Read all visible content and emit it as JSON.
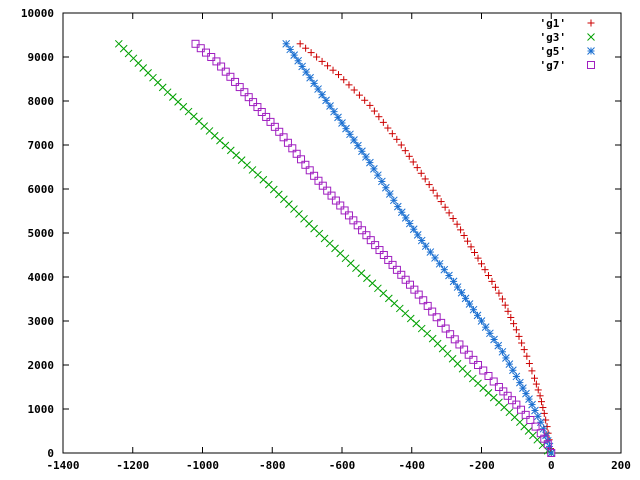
{
  "chart_data": {
    "type": "scatter",
    "title": "",
    "xlabel": "",
    "ylabel": "",
    "xlim": [
      -1400,
      200
    ],
    "ylim": [
      0,
      10000
    ],
    "x_ticks": [
      -1400,
      -1200,
      -1000,
      -800,
      -600,
      -400,
      -200,
      0,
      200
    ],
    "y_ticks": [
      0,
      1000,
      2000,
      3000,
      4000,
      5000,
      6000,
      7000,
      8000,
      9000,
      10000
    ],
    "x_tick_labels": [
      "-1400",
      "-1200",
      "-1000",
      "-800",
      "-600",
      "-400",
      "-200",
      "0",
      "200"
    ],
    "y_tick_labels": [
      "0",
      "1000",
      "2000",
      "3000",
      "4000",
      "5000",
      "6000",
      "7000",
      "8000",
      "9000",
      "10000"
    ],
    "grid": false,
    "legend_position": "top-right",
    "series": [
      {
        "name": "'g1'",
        "marker": "plus",
        "color": "#cc0000",
        "points": [
          [
            0,
            0
          ],
          [
            -2,
            100
          ],
          [
            -6,
            300
          ],
          [
            -12,
            600
          ],
          [
            -20,
            900
          ],
          [
            -32,
            1300
          ],
          [
            -48,
            1700
          ],
          [
            -70,
            2200
          ],
          [
            -100,
            2800
          ],
          [
            -140,
            3500
          ],
          [
            -200,
            4300
          ],
          [
            -270,
            5200
          ],
          [
            -350,
            6100
          ],
          [
            -430,
            7000
          ],
          [
            -520,
            7900
          ],
          [
            -610,
            8600
          ],
          [
            -720,
            9300
          ]
        ]
      },
      {
        "name": "'g3'",
        "marker": "cross",
        "color": "#00a000",
        "points": [
          [
            0,
            0
          ],
          [
            -10,
            50
          ],
          [
            -40,
            300
          ],
          [
            -90,
            700
          ],
          [
            -150,
            1150
          ],
          [
            -240,
            1800
          ],
          [
            -340,
            2600
          ],
          [
            -450,
            3400
          ],
          [
            -560,
            4200
          ],
          [
            -680,
            5100
          ],
          [
            -810,
            6100
          ],
          [
            -950,
            7100
          ],
          [
            -1100,
            8200
          ],
          [
            -1240,
            9300
          ]
        ]
      },
      {
        "name": "'g5'",
        "marker": "star",
        "color": "#1a6fd1",
        "points": [
          [
            0,
            0
          ],
          [
            -5,
            150
          ],
          [
            -15,
            400
          ],
          [
            -30,
            700
          ],
          [
            -55,
            1100
          ],
          [
            -90,
            1600
          ],
          [
            -140,
            2300
          ],
          [
            -200,
            3000
          ],
          [
            -280,
            3900
          ],
          [
            -360,
            4700
          ],
          [
            -440,
            5600
          ],
          [
            -520,
            6600
          ],
          [
            -600,
            7500
          ],
          [
            -680,
            8400
          ],
          [
            -760,
            9300
          ]
        ]
      },
      {
        "name": "'g7'",
        "marker": "square",
        "color": "#a020c0",
        "points": [
          [
            0,
            0
          ],
          [
            -10,
            200
          ],
          [
            -30,
            450
          ],
          [
            -60,
            750
          ],
          [
            -100,
            1100
          ],
          [
            -150,
            1500
          ],
          [
            -210,
            2000
          ],
          [
            -290,
            2700
          ],
          [
            -380,
            3600
          ],
          [
            -480,
            4500
          ],
          [
            -580,
            5400
          ],
          [
            -680,
            6300
          ],
          [
            -780,
            7300
          ],
          [
            -880,
            8200
          ],
          [
            -960,
            8900
          ],
          [
            -1020,
            9300
          ]
        ]
      }
    ]
  }
}
